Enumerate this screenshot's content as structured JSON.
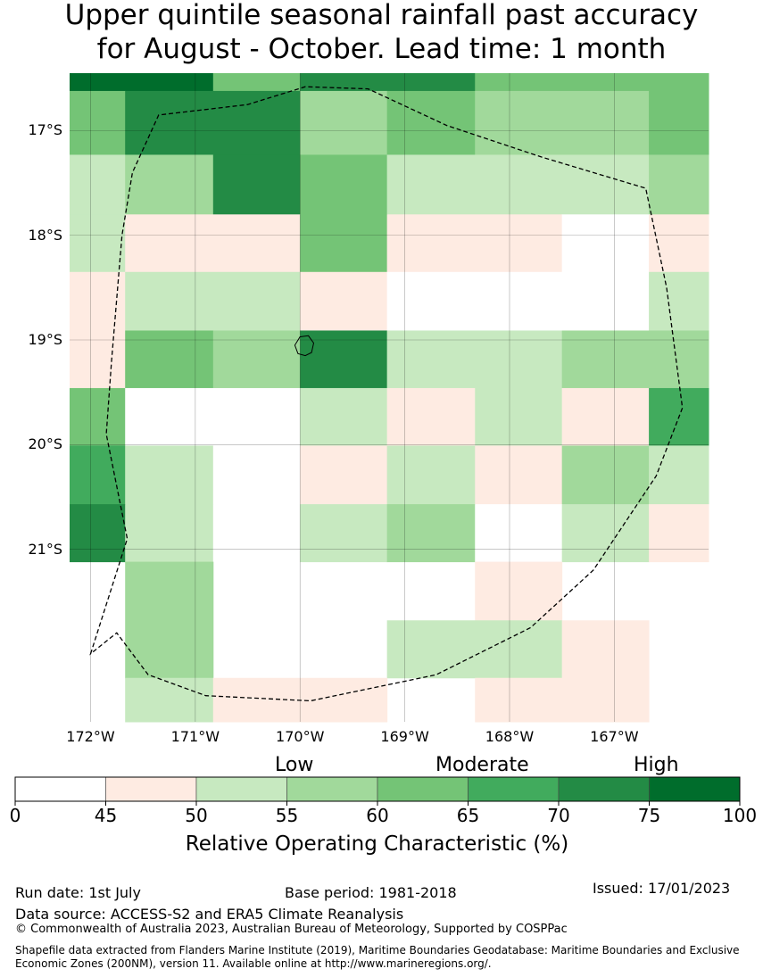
{
  "title_line1": "Upper quintile seasonal rainfall past accuracy",
  "title_line2": "for August - October. Lead time: 1 month",
  "map": {
    "lon_range": [
      -172.2,
      -166.1
    ],
    "lat_range": [
      -16.45,
      -22.65
    ],
    "y_ticks": [
      {
        "lat": -17,
        "label": "17°S"
      },
      {
        "lat": -18,
        "label": "18°S"
      },
      {
        "lat": -19,
        "label": "19°S"
      },
      {
        "lat": -20,
        "label": "20°S"
      },
      {
        "lat": -21,
        "label": "21°S"
      }
    ],
    "x_ticks": [
      {
        "lon": -172,
        "label": "172°W"
      },
      {
        "lon": -171,
        "label": "171°W"
      },
      {
        "lon": -170,
        "label": "170°W"
      },
      {
        "lon": -169,
        "label": "169°W"
      },
      {
        "lon": -168,
        "label": "168°W"
      },
      {
        "lon": -167,
        "label": "167°W"
      }
    ],
    "cells": [
      {
        "lon": [
          -172.2,
          -170.83
        ],
        "lat": [
          -16.45,
          -16.62
        ],
        "roc": 78
      },
      {
        "lon": [
          -170.83,
          -170.0
        ],
        "lat": [
          -16.45,
          -16.62
        ],
        "roc": 62
      },
      {
        "lon": [
          -170.0,
          -168.33
        ],
        "lat": [
          -16.45,
          -16.62
        ],
        "roc": 73
      },
      {
        "lon": [
          -168.33,
          -166.1
        ],
        "lat": [
          -16.45,
          -16.62
        ],
        "roc": 62
      },
      {
        "lon": [
          -172.2,
          -171.67
        ],
        "lat": [
          -16.62,
          -17.23
        ],
        "roc": 62
      },
      {
        "lon": [
          -171.67,
          -170.0
        ],
        "lat": [
          -16.62,
          -17.23
        ],
        "roc": 73
      },
      {
        "lon": [
          -170.0,
          -169.17
        ],
        "lat": [
          -16.62,
          -17.23
        ],
        "roc": 58
      },
      {
        "lon": [
          -169.17,
          -168.33
        ],
        "lat": [
          -16.62,
          -17.23
        ],
        "roc": 62
      },
      {
        "lon": [
          -168.33,
          -166.67
        ],
        "lat": [
          -16.62,
          -17.23
        ],
        "roc": 58
      },
      {
        "lon": [
          -166.67,
          -166.1
        ],
        "lat": [
          -16.62,
          -17.23
        ],
        "roc": 62
      },
      {
        "lon": [
          -172.2,
          -171.67
        ],
        "lat": [
          -17.23,
          -17.8
        ],
        "roc": 52
      },
      {
        "lon": [
          -171.67,
          -170.83
        ],
        "lat": [
          -17.23,
          -17.8
        ],
        "roc": 58
      },
      {
        "lon": [
          -170.83,
          -170.0
        ],
        "lat": [
          -17.23,
          -17.8
        ],
        "roc": 73
      },
      {
        "lon": [
          -170.0,
          -169.17
        ],
        "lat": [
          -17.23,
          -17.8
        ],
        "roc": 62
      },
      {
        "lon": [
          -169.17,
          -166.67
        ],
        "lat": [
          -17.23,
          -17.8
        ],
        "roc": 52
      },
      {
        "lon": [
          -166.67,
          -166.1
        ],
        "lat": [
          -17.23,
          -17.8
        ],
        "roc": 58
      },
      {
        "lon": [
          -172.2,
          -171.67
        ],
        "lat": [
          -17.8,
          -18.35
        ],
        "roc": 52
      },
      {
        "lon": [
          -171.67,
          -170.0
        ],
        "lat": [
          -17.8,
          -18.35
        ],
        "roc": 47
      },
      {
        "lon": [
          -170.0,
          -169.17
        ],
        "lat": [
          -17.8,
          -18.35
        ],
        "roc": 62
      },
      {
        "lon": [
          -169.17,
          -167.5
        ],
        "lat": [
          -17.8,
          -18.35
        ],
        "roc": 47
      },
      {
        "lon": [
          -167.5,
          -166.67
        ],
        "lat": [
          -17.8,
          -18.35
        ],
        "roc": 40
      },
      {
        "lon": [
          -166.67,
          -166.1
        ],
        "lat": [
          -17.8,
          -18.35
        ],
        "roc": 47
      },
      {
        "lon": [
          -172.2,
          -171.67
        ],
        "lat": [
          -18.35,
          -18.91
        ],
        "roc": 47
      },
      {
        "lon": [
          -171.67,
          -170.0
        ],
        "lat": [
          -18.35,
          -18.91
        ],
        "roc": 52
      },
      {
        "lon": [
          -170.0,
          -169.17
        ],
        "lat": [
          -18.35,
          -18.91
        ],
        "roc": 47
      },
      {
        "lon": [
          -169.17,
          -166.67
        ],
        "lat": [
          -18.35,
          -18.91
        ],
        "roc": 40
      },
      {
        "lon": [
          -166.67,
          -166.1
        ],
        "lat": [
          -18.35,
          -18.91
        ],
        "roc": 52
      },
      {
        "lon": [
          -172.2,
          -171.67
        ],
        "lat": [
          -18.91,
          -19.46
        ],
        "roc": 47
      },
      {
        "lon": [
          -171.67,
          -170.83
        ],
        "lat": [
          -18.91,
          -19.46
        ],
        "roc": 62
      },
      {
        "lon": [
          -170.83,
          -170.0
        ],
        "lat": [
          -18.91,
          -19.46
        ],
        "roc": 58
      },
      {
        "lon": [
          -170.0,
          -169.17
        ],
        "lat": [
          -18.91,
          -19.46
        ],
        "roc": 73
      },
      {
        "lon": [
          -169.17,
          -167.5
        ],
        "lat": [
          -18.91,
          -19.46
        ],
        "roc": 52
      },
      {
        "lon": [
          -167.5,
          -166.1
        ],
        "lat": [
          -18.91,
          -19.46
        ],
        "roc": 58
      },
      {
        "lon": [
          -172.2,
          -171.67
        ],
        "lat": [
          -19.46,
          -20.01
        ],
        "roc": 62
      },
      {
        "lon": [
          -171.67,
          -170.0
        ],
        "lat": [
          -19.46,
          -20.01
        ],
        "roc": 40
      },
      {
        "lon": [
          -170.0,
          -169.17
        ],
        "lat": [
          -19.46,
          -20.01
        ],
        "roc": 52
      },
      {
        "lon": [
          -169.17,
          -168.33
        ],
        "lat": [
          -19.46,
          -20.01
        ],
        "roc": 47
      },
      {
        "lon": [
          -168.33,
          -167.5
        ],
        "lat": [
          -19.46,
          -20.01
        ],
        "roc": 52
      },
      {
        "lon": [
          -167.5,
          -166.67
        ],
        "lat": [
          -19.46,
          -20.01
        ],
        "roc": 47
      },
      {
        "lon": [
          -166.67,
          -166.1
        ],
        "lat": [
          -19.46,
          -20.01
        ],
        "roc": 68
      },
      {
        "lon": [
          -172.2,
          -171.67
        ],
        "lat": [
          -20.01,
          -20.57
        ],
        "roc": 68
      },
      {
        "lon": [
          -171.67,
          -170.83
        ],
        "lat": [
          -20.01,
          -20.57
        ],
        "roc": 52
      },
      {
        "lon": [
          -170.83,
          -170.0
        ],
        "lat": [
          -20.01,
          -20.57
        ],
        "roc": 40
      },
      {
        "lon": [
          -170.0,
          -169.17
        ],
        "lat": [
          -20.01,
          -20.57
        ],
        "roc": 47
      },
      {
        "lon": [
          -169.17,
          -168.33
        ],
        "lat": [
          -20.01,
          -20.57
        ],
        "roc": 52
      },
      {
        "lon": [
          -168.33,
          -167.5
        ],
        "lat": [
          -20.01,
          -20.57
        ],
        "roc": 47
      },
      {
        "lon": [
          -167.5,
          -166.67
        ],
        "lat": [
          -20.01,
          -20.57
        ],
        "roc": 58
      },
      {
        "lon": [
          -166.67,
          -166.1
        ],
        "lat": [
          -20.01,
          -20.57
        ],
        "roc": 52
      },
      {
        "lon": [
          -172.2,
          -171.67
        ],
        "lat": [
          -20.57,
          -21.12
        ],
        "roc": 73
      },
      {
        "lon": [
          -171.67,
          -170.83
        ],
        "lat": [
          -20.57,
          -21.12
        ],
        "roc": 52
      },
      {
        "lon": [
          -170.83,
          -170.0
        ],
        "lat": [
          -20.57,
          -21.12
        ],
        "roc": 40
      },
      {
        "lon": [
          -170.0,
          -169.17
        ],
        "lat": [
          -20.57,
          -21.12
        ],
        "roc": 52
      },
      {
        "lon": [
          -169.17,
          -168.33
        ],
        "lat": [
          -20.57,
          -21.12
        ],
        "roc": 58
      },
      {
        "lon": [
          -168.33,
          -167.5
        ],
        "lat": [
          -20.57,
          -21.12
        ],
        "roc": 40
      },
      {
        "lon": [
          -167.5,
          -166.67
        ],
        "lat": [
          -20.57,
          -21.12
        ],
        "roc": 52
      },
      {
        "lon": [
          -166.67,
          -166.1
        ],
        "lat": [
          -20.57,
          -21.12
        ],
        "roc": 47
      },
      {
        "lon": [
          -171.67,
          -170.83
        ],
        "lat": [
          -21.12,
          -22.23
        ],
        "roc": 58
      },
      {
        "lon": [
          -168.33,
          -167.5
        ],
        "lat": [
          -21.12,
          -21.68
        ],
        "roc": 47
      },
      {
        "lon": [
          -169.17,
          -167.5
        ],
        "lat": [
          -21.68,
          -22.23
        ],
        "roc": 52
      },
      {
        "lon": [
          -167.5,
          -166.67
        ],
        "lat": [
          -21.68,
          -22.23
        ],
        "roc": 47
      },
      {
        "lon": [
          -171.67,
          -170.83
        ],
        "lat": [
          -22.23,
          -22.65
        ],
        "roc": 52
      },
      {
        "lon": [
          -170.83,
          -169.17
        ],
        "lat": [
          -22.23,
          -22.65
        ],
        "roc": 47
      },
      {
        "lon": [
          -168.33,
          -166.67
        ],
        "lat": [
          -22.23,
          -22.65
        ],
        "roc": 47
      }
    ],
    "eez_boundary": [
      [
        -172.0,
        -22.0
      ],
      [
        -171.65,
        -20.9
      ],
      [
        -171.85,
        -19.9
      ],
      [
        -171.8,
        -19.2
      ],
      [
        -171.7,
        -18.0
      ],
      [
        -171.6,
        -17.4
      ],
      [
        -171.35,
        -16.85
      ],
      [
        -170.5,
        -16.75
      ],
      [
        -169.95,
        -16.58
      ],
      [
        -169.35,
        -16.6
      ],
      [
        -168.6,
        -16.95
      ],
      [
        -167.7,
        -17.25
      ],
      [
        -166.7,
        -17.55
      ],
      [
        -166.5,
        -18.5
      ],
      [
        -166.35,
        -19.65
      ],
      [
        -166.6,
        -20.3
      ],
      [
        -167.2,
        -21.2
      ],
      [
        -167.8,
        -21.75
      ],
      [
        -168.7,
        -22.2
      ],
      [
        -169.9,
        -22.45
      ],
      [
        -170.9,
        -22.4
      ],
      [
        -171.45,
        -22.2
      ],
      [
        -171.75,
        -21.8
      ],
      [
        -172.0,
        -22.0
      ]
    ],
    "island": [
      [
        -170.0,
        -18.97
      ],
      [
        -169.92,
        -18.96
      ],
      [
        -169.87,
        -19.03
      ],
      [
        -169.89,
        -19.12
      ],
      [
        -169.95,
        -19.15
      ],
      [
        -170.02,
        -19.13
      ],
      [
        -170.05,
        -19.05
      ],
      [
        -170.0,
        -18.97
      ]
    ]
  },
  "colorbar": {
    "ticks": [
      "0",
      "45",
      "50",
      "55",
      "60",
      "65",
      "70",
      "75",
      "100"
    ],
    "colors": [
      "#ffffff",
      "#feebe2",
      "#c7e9c0",
      "#a1d99b",
      "#74c476",
      "#41ab5d",
      "#238b45",
      "#006d2c"
    ],
    "level_low": "Low",
    "level_moderate": "Moderate",
    "level_high": "High",
    "label": "Relative Operating Characteristic (%)"
  },
  "footer": {
    "run_date": "Run date: 1st July",
    "base_period": "Base period: 1981-2018",
    "issued": "Issued: 17/01/2023",
    "data_source": "Data source: ACCESS-S2 and ERA5 Climate Reanalysis",
    "copyright": "© Commonwealth of Australia 2023, Australian Bureau of Meteorology, Supported by COSPPac",
    "shapefile": "Shapefile data extracted from Flanders Marine Institute (2019), Maritime Boundaries Geodatabase: Maritime Boundaries and Exclusive Economic Zones (200NM), version 11. Available online at http://www.marineregions.org/."
  }
}
